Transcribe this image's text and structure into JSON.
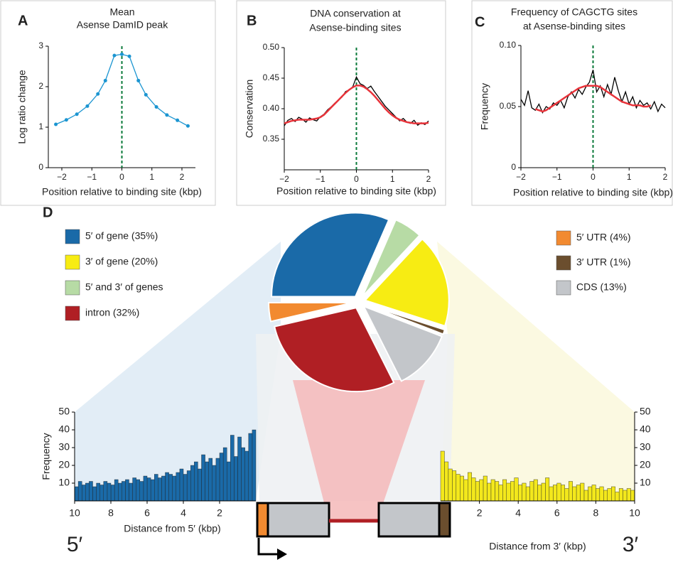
{
  "chart_data": [
    {
      "type": "line",
      "panel": "A",
      "title": "Mean",
      "subtitle": "Asense DamID peak",
      "xlabel": "Position relative to binding site (kbp)",
      "ylabel": "Log ratio change",
      "x": [
        -2.2,
        -1.85,
        -1.5,
        -1.15,
        -0.8,
        -0.55,
        -0.25,
        0,
        0.25,
        0.55,
        0.8,
        1.15,
        1.5,
        1.85,
        2.2
      ],
      "series": [
        {
          "color": "#1b95d1",
          "markers": true,
          "values": [
            1.07,
            1.18,
            1.32,
            1.52,
            1.82,
            2.15,
            2.77,
            2.8,
            2.75,
            2.15,
            1.8,
            1.5,
            1.3,
            1.17,
            1.03
          ]
        }
      ],
      "xlim": [
        -2.45,
        2.45
      ],
      "xticks": [
        {
          "value": -2,
          "label": "−2"
        },
        {
          "value": -1,
          "label": "−1"
        },
        0,
        1,
        2
      ],
      "ylim": [
        0,
        3
      ],
      "yticks": [
        0,
        1,
        2,
        3
      ],
      "vline_color": "#0a7a3a"
    },
    {
      "type": "line",
      "panel": "B",
      "title": "DNA conservation at",
      "subtitle": "Asense-binding sites",
      "xlabel": "Position relative to binding site (kbp)",
      "ylabel": "Conservation",
      "x": [
        -2,
        -1.9,
        -1.8,
        -1.7,
        -1.6,
        -1.5,
        -1.4,
        -1.3,
        -1.2,
        -1.1,
        -1,
        -0.9,
        -0.8,
        -0.7,
        -0.6,
        -0.5,
        -0.4,
        -0.3,
        -0.2,
        -0.1,
        0,
        0.1,
        0.2,
        0.3,
        0.4,
        0.5,
        0.6,
        0.7,
        0.8,
        0.9,
        1,
        1.1,
        1.2,
        1.3,
        1.4,
        1.5,
        1.6,
        1.7,
        1.8,
        1.9,
        2
      ],
      "series": [
        {
          "color": "#000000",
          "values": [
            0.372,
            0.381,
            0.384,
            0.379,
            0.386,
            0.383,
            0.378,
            0.385,
            0.382,
            0.38,
            0.387,
            0.391,
            0.398,
            0.403,
            0.409,
            0.414,
            0.419,
            0.428,
            0.431,
            0.436,
            0.452,
            0.441,
            0.438,
            0.433,
            0.437,
            0.428,
            0.42,
            0.412,
            0.404,
            0.398,
            0.392,
            0.386,
            0.38,
            0.384,
            0.378,
            0.376,
            0.381,
            0.373,
            0.377,
            0.374,
            0.38
          ]
        },
        {
          "color": "#e8333a",
          "values": [
            0.376,
            0.378,
            0.38,
            0.381,
            0.382,
            0.382,
            0.382,
            0.382,
            0.383,
            0.384,
            0.386,
            0.39,
            0.396,
            0.402,
            0.408,
            0.414,
            0.42,
            0.426,
            0.431,
            0.435,
            0.438,
            0.438,
            0.436,
            0.432,
            0.427,
            0.421,
            0.414,
            0.407,
            0.4,
            0.394,
            0.389,
            0.385,
            0.382,
            0.38,
            0.378,
            0.377,
            0.376,
            0.376,
            0.376,
            0.376,
            0.377
          ]
        }
      ],
      "xlim": [
        -2,
        2
      ],
      "xticks": [
        {
          "value": -2,
          "label": "−2"
        },
        {
          "value": -1,
          "label": "−1"
        },
        0,
        1,
        2
      ],
      "ylim": [
        0.3,
        0.5
      ],
      "yticks": [
        0.35,
        {
          "value": 0.4,
          "label": "0.40"
        },
        0.45,
        {
          "value": 0.5,
          "label": "0.50"
        }
      ],
      "vline_color": "#0a7a3a"
    },
    {
      "type": "line",
      "panel": "C",
      "title": "Frequency of CAGCTG sites",
      "subtitle": "at Asense-binding sites",
      "xlabel": "Position relative to binding site (kbp)",
      "ylabel": "Frequency",
      "x": [
        -2,
        -1.9,
        -1.8,
        -1.7,
        -1.6,
        -1.5,
        -1.4,
        -1.3,
        -1.2,
        -1.1,
        -1,
        -0.9,
        -0.8,
        -0.7,
        -0.6,
        -0.5,
        -0.4,
        -0.3,
        -0.2,
        -0.1,
        0,
        0.1,
        0.2,
        0.3,
        0.4,
        0.5,
        0.6,
        0.7,
        0.8,
        0.9,
        1,
        1.1,
        1.2,
        1.3,
        1.4,
        1.5,
        1.6,
        1.7,
        1.8,
        1.9,
        2
      ],
      "series": [
        {
          "color": "#000000",
          "values": [
            0.056,
            0.051,
            0.063,
            0.049,
            0.047,
            0.052,
            0.045,
            0.05,
            0.048,
            0.053,
            0.051,
            0.055,
            0.049,
            0.058,
            0.062,
            0.057,
            0.064,
            0.06,
            0.066,
            0.07,
            0.08,
            0.062,
            0.067,
            0.058,
            0.068,
            0.06,
            0.074,
            0.063,
            0.054,
            0.062,
            0.052,
            0.058,
            0.049,
            0.055,
            0.051,
            0.053,
            0.048,
            0.054,
            0.046,
            0.052,
            0.049
          ]
        },
        {
          "color": "#e8333a",
          "values": [
            null,
            null,
            null,
            null,
            0.048,
            0.047,
            0.046,
            0.047,
            0.049,
            0.051,
            0.053,
            0.055,
            0.057,
            0.059,
            0.061,
            0.063,
            0.065,
            0.066,
            0.067,
            0.067,
            0.067,
            0.067,
            0.066,
            0.064,
            0.062,
            0.06,
            0.058,
            0.056,
            0.054,
            0.053,
            0.052,
            0.051,
            0.051,
            0.051,
            0.05,
            0.05,
            0.051,
            null,
            null,
            null,
            null
          ]
        }
      ],
      "xlim": [
        -2,
        2
      ],
      "xticks": [
        {
          "value": -2,
          "label": "−2"
        },
        {
          "value": -1,
          "label": "−1"
        },
        0,
        1,
        2
      ],
      "ylim": [
        0,
        0.1
      ],
      "yticks": [
        0,
        0.05,
        {
          "value": 0.1,
          "label": "0.10"
        }
      ],
      "vline_color": "#0a7a3a"
    },
    {
      "type": "pie",
      "panel": "D",
      "categories": [
        "5′ of gene (35%)",
        "3′ of gene (20%)",
        "5′ and 3′ of genes",
        "intron (32%)",
        "5′ UTR (4%)",
        "3′ UTR (1%)",
        "CDS (13%)"
      ],
      "values": [
        35,
        20,
        6,
        32,
        4,
        1,
        13
      ],
      "colors": [
        "#1a6aa8",
        "#f7ec13",
        "#b7dba5",
        "#b01f24",
        "#f28a30",
        "#6b4e2e",
        "#c3c6ca"
      ]
    },
    {
      "type": "histogram",
      "xlabel": "Distance from 5′ (kbp)",
      "ylabel": "Frequency",
      "end_label": "5′",
      "color": "#1a6aa8",
      "bins": [
        0,
        0.2,
        0.4,
        0.6,
        0.8,
        1,
        1.2,
        1.4,
        1.6,
        1.8,
        2,
        2.2,
        2.4,
        2.6,
        2.8,
        3,
        3.2,
        3.4,
        3.6,
        3.8,
        4,
        4.2,
        4.4,
        4.6,
        4.8,
        5,
        5.2,
        5.4,
        5.6,
        5.8,
        6,
        6.2,
        6.4,
        6.6,
        6.8,
        7,
        7.2,
        7.4,
        7.6,
        7.8,
        8,
        8.2,
        8.4,
        8.6,
        8.8,
        9,
        9.2,
        9.4,
        9.6,
        9.8,
        10
      ],
      "values": [
        40,
        38,
        28,
        30,
        36,
        25,
        37,
        22,
        30,
        27,
        24,
        20,
        24,
        22,
        26,
        18,
        22,
        20,
        17,
        15,
        18,
        16,
        14,
        15,
        16,
        14,
        13,
        15,
        12,
        13,
        14,
        11,
        12,
        13,
        10,
        12,
        11,
        10,
        12,
        9,
        10,
        11,
        9,
        10,
        8,
        11,
        10,
        9,
        11,
        8
      ],
      "xlim": [
        10,
        0
      ],
      "xticks": [
        10,
        8,
        6,
        4,
        2
      ],
      "ylim": [
        0,
        50
      ],
      "yticks": [
        10,
        20,
        30,
        40,
        50
      ]
    },
    {
      "type": "histogram",
      "xlabel": "Distance from 3′ (kbp)",
      "end_label": "3′",
      "color": "#f3e81c",
      "bins": [
        0,
        0.2,
        0.4,
        0.6,
        0.8,
        1,
        1.2,
        1.4,
        1.6,
        1.8,
        2,
        2.2,
        2.4,
        2.6,
        2.8,
        3,
        3.2,
        3.4,
        3.6,
        3.8,
        4,
        4.2,
        4.4,
        4.6,
        4.8,
        5,
        5.2,
        5.4,
        5.6,
        5.8,
        6,
        6.2,
        6.4,
        6.6,
        6.8,
        7,
        7.2,
        7.4,
        7.6,
        7.8,
        8,
        8.2,
        8.4,
        8.6,
        8.8,
        9,
        9.2,
        9.4,
        9.6,
        9.8,
        10
      ],
      "values": [
        28,
        22,
        18,
        17,
        15,
        14,
        12,
        16,
        13,
        11,
        12,
        14,
        10,
        12,
        11,
        9,
        12,
        10,
        11,
        13,
        9,
        10,
        8,
        11,
        12,
        9,
        10,
        13,
        8,
        9,
        10,
        9,
        7,
        11,
        8,
        9,
        10,
        6,
        8,
        9,
        7,
        8,
        6,
        7,
        8,
        5,
        7,
        6,
        7,
        6
      ],
      "xlim": [
        0,
        10
      ],
      "xticks": [
        2,
        4,
        6,
        8,
        10
      ],
      "ylim": [
        0,
        50
      ],
      "yticks": [
        10,
        20,
        30,
        40,
        50
      ]
    }
  ]
}
